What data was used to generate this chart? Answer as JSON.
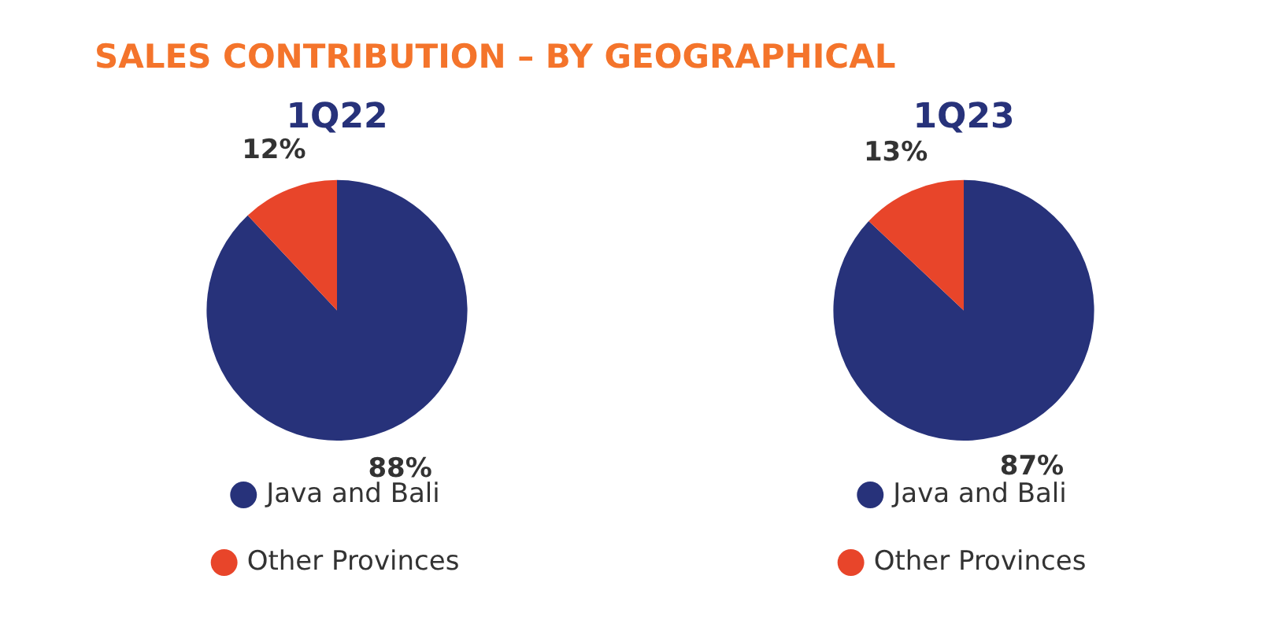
{
  "chart_data": [
    {
      "type": "pie",
      "title": "SALES CONTRIBUTION – BY GEOGRAPHICAL",
      "subtitle": "1Q22",
      "categories": [
        "Java and Bali",
        "Other Provinces"
      ],
      "values": [
        88,
        12
      ],
      "colors": [
        "#27327a",
        "#e8452a"
      ],
      "value_labels": [
        "88%",
        "12%"
      ],
      "legend": "bottom"
    },
    {
      "type": "pie",
      "subtitle": "1Q23",
      "categories": [
        "Java and Bali",
        "Other Provinces"
      ],
      "values": [
        87,
        13
      ],
      "colors": [
        "#27327a",
        "#e8452a"
      ],
      "value_labels": [
        "87%",
        "13%"
      ],
      "legend": "bottom"
    }
  ]
}
